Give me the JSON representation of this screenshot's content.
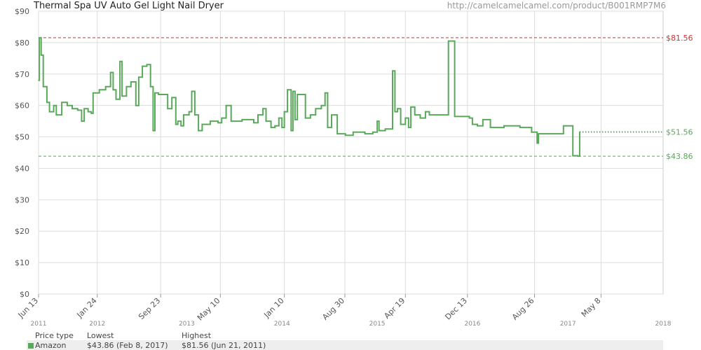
{
  "header": {
    "title": "Thermal Spa UV Auto Gel Light Nail Dryer",
    "url": "http://camelcamelcamel.com/product/B001RMP7M6"
  },
  "legend": {
    "headers": [
      "Price type",
      "Lowest",
      "Highest"
    ],
    "amazon": {
      "label": "Amazon",
      "lowest": "$43.86 (Feb 8, 2017)",
      "highest": "$81.56 (Jun 21, 2011)"
    }
  },
  "colors": {
    "series": "#5aa85a",
    "high_line": "#cc3333",
    "low_line": "#5aa85a",
    "grid": "#dddddd"
  },
  "chart_data": {
    "type": "line",
    "title": "Thermal Spa UV Auto Gel Light Nail Dryer",
    "x_range": [
      "2011-06-13",
      "2018-01-01"
    ],
    "ylim": [
      0,
      90
    ],
    "y_ticks": [
      "$0",
      "$10",
      "$20",
      "$30",
      "$40",
      "$50",
      "$60",
      "$70",
      "$80",
      "$90"
    ],
    "x_ticks": [
      {
        "label": "Jun 13",
        "date": "2011-06-13"
      },
      {
        "label": "Jan 24",
        "date": "2012-01-24"
      },
      {
        "label": "Sep 23",
        "date": "2012-09-23"
      },
      {
        "label": "May 10",
        "date": "2013-05-10"
      },
      {
        "label": "Jan 10",
        "date": "2014-01-10"
      },
      {
        "label": "Aug 30",
        "date": "2014-08-30"
      },
      {
        "label": "Apr 19",
        "date": "2015-04-19"
      },
      {
        "label": "Dec 13",
        "date": "2015-12-13"
      },
      {
        "label": "Aug 26",
        "date": "2016-08-26"
      },
      {
        "label": "May 8",
        "date": "2017-05-08"
      }
    ],
    "year_labels": [
      {
        "label": "2011",
        "date": "2011-06-13"
      },
      {
        "label": "2012",
        "date": "2012-01-24"
      },
      {
        "label": "2013",
        "date": "2013-01-01"
      },
      {
        "label": "2014",
        "date": "2014-01-01"
      },
      {
        "label": "2015",
        "date": "2015-01-01"
      },
      {
        "label": "2016",
        "date": "2016-01-01"
      },
      {
        "label": "2017",
        "date": "2017-01-01"
      },
      {
        "label": "2018",
        "date": "2018-01-01"
      }
    ],
    "reference_lines": [
      {
        "name": "highest",
        "value": 81.56,
        "label": "$81.56"
      },
      {
        "name": "current",
        "value": 51.56,
        "label": "$51.56"
      },
      {
        "name": "lowest",
        "value": 43.86,
        "label": "$43.86"
      }
    ],
    "series": [
      {
        "name": "Amazon",
        "points": [
          [
            "2011-06-13",
            68.0
          ],
          [
            "2011-06-16",
            81.56
          ],
          [
            "2011-06-23",
            76.0
          ],
          [
            "2011-07-01",
            66.0
          ],
          [
            "2011-07-15",
            61.0
          ],
          [
            "2011-07-25",
            58.0
          ],
          [
            "2011-08-10",
            60.0
          ],
          [
            "2011-08-20",
            57.0
          ],
          [
            "2011-09-10",
            61.0
          ],
          [
            "2011-10-01",
            60.0
          ],
          [
            "2011-10-20",
            59.0
          ],
          [
            "2011-11-10",
            58.5
          ],
          [
            "2011-11-25",
            55.0
          ],
          [
            "2011-12-05",
            59.0
          ],
          [
            "2011-12-20",
            58.0
          ],
          [
            "2012-01-01",
            57.5
          ],
          [
            "2012-01-08",
            64.0
          ],
          [
            "2012-02-01",
            65.0
          ],
          [
            "2012-02-25",
            66.0
          ],
          [
            "2012-03-15",
            70.5
          ],
          [
            "2012-03-25",
            65.0
          ],
          [
            "2012-04-05",
            62.0
          ],
          [
            "2012-04-20",
            74.0
          ],
          [
            "2012-04-28",
            63.0
          ],
          [
            "2012-05-15",
            66.0
          ],
          [
            "2012-06-01",
            67.5
          ],
          [
            "2012-06-20",
            60.0
          ],
          [
            "2012-07-01",
            69.0
          ],
          [
            "2012-07-15",
            72.5
          ],
          [
            "2012-08-01",
            73.0
          ],
          [
            "2012-08-15",
            66.0
          ],
          [
            "2012-08-25",
            52.0
          ],
          [
            "2012-09-01",
            64.0
          ],
          [
            "2012-09-15",
            63.5
          ],
          [
            "2012-10-20",
            59.0
          ],
          [
            "2012-11-05",
            62.5
          ],
          [
            "2012-11-20",
            54.0
          ],
          [
            "2012-11-28",
            55.0
          ],
          [
            "2012-12-10",
            53.5
          ],
          [
            "2012-12-20",
            57.0
          ],
          [
            "2013-01-10",
            58.0
          ],
          [
            "2013-01-20",
            64.5
          ],
          [
            "2013-02-01",
            57.0
          ],
          [
            "2013-02-15",
            52.0
          ],
          [
            "2013-03-01",
            54.0
          ],
          [
            "2013-04-01",
            55.0
          ],
          [
            "2013-05-01",
            54.5
          ],
          [
            "2013-05-15",
            56.0
          ],
          [
            "2013-06-01",
            60.0
          ],
          [
            "2013-06-20",
            55.0
          ],
          [
            "2013-08-01",
            55.5
          ],
          [
            "2013-09-15",
            54.5
          ],
          [
            "2013-10-01",
            57.0
          ],
          [
            "2013-10-20",
            59.0
          ],
          [
            "2013-11-01",
            55.0
          ],
          [
            "2013-11-20",
            53.0
          ],
          [
            "2013-12-05",
            53.5
          ],
          [
            "2013-12-20",
            56.0
          ],
          [
            "2014-01-01",
            53.0
          ],
          [
            "2014-01-10",
            58.0
          ],
          [
            "2014-01-22",
            65.0
          ],
          [
            "2014-02-05",
            52.0
          ],
          [
            "2014-02-12",
            64.5
          ],
          [
            "2014-02-20",
            55.5
          ],
          [
            "2014-03-01",
            63.5
          ],
          [
            "2014-04-01",
            56.0
          ],
          [
            "2014-04-20",
            57.0
          ],
          [
            "2014-05-10",
            59.0
          ],
          [
            "2014-06-01",
            60.0
          ],
          [
            "2014-06-15",
            64.0
          ],
          [
            "2014-06-25",
            53.0
          ],
          [
            "2014-07-10",
            57.0
          ],
          [
            "2014-08-01",
            51.0
          ],
          [
            "2014-09-01",
            50.5
          ],
          [
            "2014-10-01",
            51.5
          ],
          [
            "2014-11-15",
            51.0
          ],
          [
            "2014-12-15",
            51.5
          ],
          [
            "2015-01-01",
            55.0
          ],
          [
            "2015-01-08",
            52.0
          ],
          [
            "2015-02-01",
            52.5
          ],
          [
            "2015-03-01",
            71.0
          ],
          [
            "2015-03-10",
            58.0
          ],
          [
            "2015-03-20",
            59.0
          ],
          [
            "2015-04-01",
            54.0
          ],
          [
            "2015-04-19",
            56.0
          ],
          [
            "2015-05-01",
            53.0
          ],
          [
            "2015-05-10",
            59.5
          ],
          [
            "2015-05-25",
            57.0
          ],
          [
            "2015-06-15",
            56.0
          ],
          [
            "2015-07-05",
            58.0
          ],
          [
            "2015-07-20",
            57.0
          ],
          [
            "2015-08-15",
            57.0
          ],
          [
            "2015-10-01",
            80.5
          ],
          [
            "2015-10-20",
            80.5
          ],
          [
            "2015-10-25",
            56.5
          ],
          [
            "2015-12-20",
            56.0
          ],
          [
            "2016-01-01",
            54.0
          ],
          [
            "2016-01-20",
            53.5
          ],
          [
            "2016-02-10",
            55.5
          ],
          [
            "2016-03-10",
            53.0
          ],
          [
            "2016-05-01",
            53.5
          ],
          [
            "2016-07-01",
            53.0
          ],
          [
            "2016-08-15",
            51.5
          ],
          [
            "2016-09-05",
            48.0
          ],
          [
            "2016-09-10",
            51.0
          ],
          [
            "2016-11-01",
            51.0
          ],
          [
            "2016-12-15",
            53.5
          ],
          [
            "2017-01-20",
            44.0
          ],
          [
            "2017-02-08",
            43.86
          ],
          [
            "2017-02-15",
            51.56
          ]
        ]
      }
    ]
  }
}
